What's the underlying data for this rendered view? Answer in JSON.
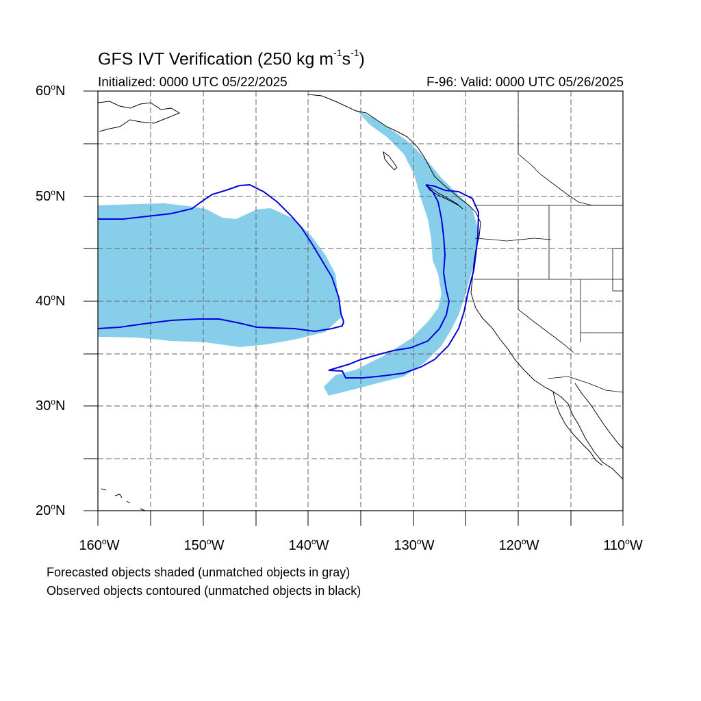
{
  "title": {
    "text": "GFS IVT Verification (250 kg m",
    "exp1": "-1",
    "mid": "s",
    "exp2": "-1",
    "close": ")"
  },
  "init_label": "Initialized: 0000 UTC 05/22/2025",
  "valid_label": "F-96: Valid: 0000 UTC 05/26/2025",
  "lat_labels": [
    {
      "value": "60",
      "suffix": "N"
    },
    {
      "value": "50",
      "suffix": "N"
    },
    {
      "value": "40",
      "suffix": "N"
    },
    {
      "value": "30",
      "suffix": "N"
    },
    {
      "value": "20",
      "suffix": "N"
    }
  ],
  "lon_labels": [
    {
      "value": "160",
      "suffix": "W"
    },
    {
      "value": "150",
      "suffix": "W"
    },
    {
      "value": "140",
      "suffix": "W"
    },
    {
      "value": "130",
      "suffix": "W"
    },
    {
      "value": "120",
      "suffix": "W"
    },
    {
      "value": "110",
      "suffix": "W"
    }
  ],
  "captions": {
    "forecast": "Forecasted objects shaded (unmatched objects in gray)",
    "observed": "Observed objects contoured (unmatched objects in black)"
  },
  "map": {
    "lat_range": [
      20,
      60
    ],
    "lon_range": [
      -160,
      -110
    ]
  },
  "colors": {
    "forecast_fill": "#87ceeb",
    "observed_contour": "#0000dd",
    "coastline": "#000000"
  }
}
